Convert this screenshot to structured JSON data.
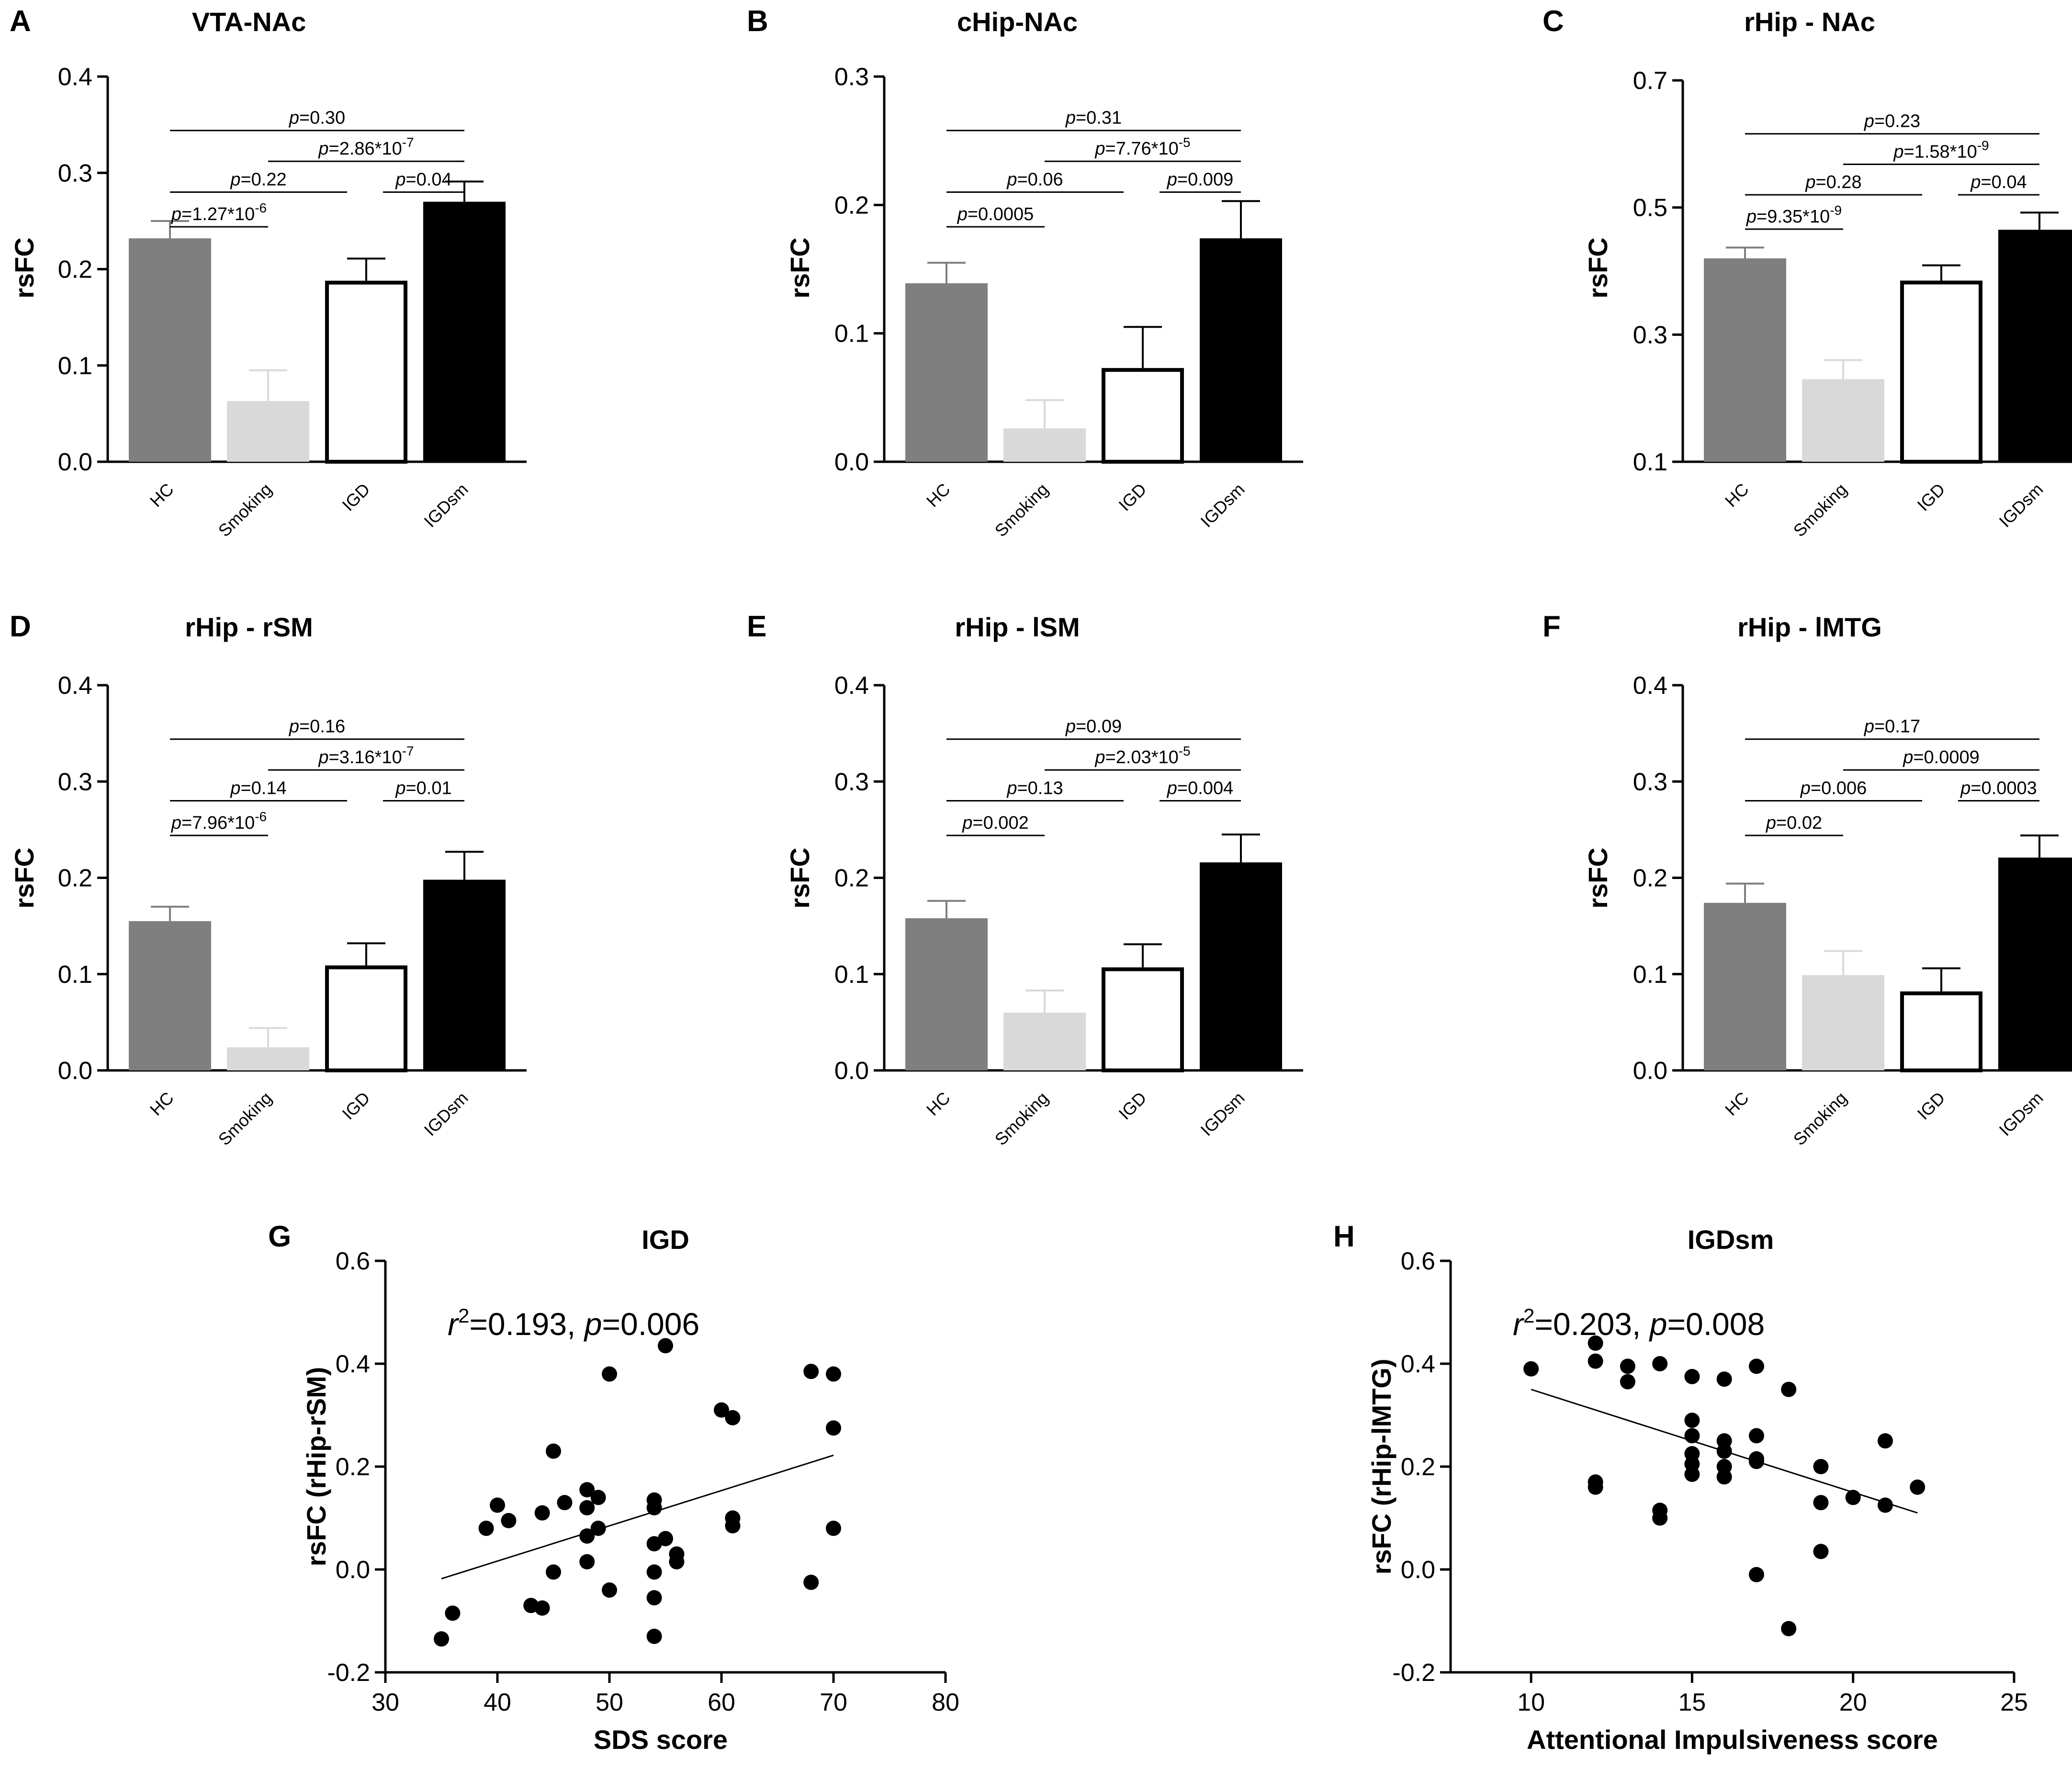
{
  "figure": {
    "bar_panels": [
      {
        "letter": "A",
        "title": "VTA-NAc",
        "ylabel": "rsFC",
        "ylim": [
          0.0,
          0.4
        ],
        "yticks": [
          "0.0",
          "0.1",
          "0.2",
          "0.3",
          "0.4"
        ],
        "categories": [
          "HC",
          "Smoking",
          "IGD",
          "IGDsm"
        ],
        "comparisons": [
          {
            "pair": [
              0,
              3
            ],
            "prefix": "p",
            "value": "=0.30"
          },
          {
            "pair": [
              1,
              3
            ],
            "prefix": "p",
            "value": "=2.86*10",
            "exp": "-7"
          },
          {
            "pair": [
              0,
              2
            ],
            "prefix": "p",
            "value": "=0.22"
          },
          {
            "pair": [
              2,
              3
            ],
            "prefix": "p",
            "value": "=0.04"
          },
          {
            "pair": [
              0,
              1
            ],
            "prefix": "p",
            "value": "=1.27*10",
            "exp": "-6"
          }
        ]
      },
      {
        "letter": "B",
        "title": "cHip-NAc",
        "ylabel": "rsFC",
        "ylim": [
          0.0,
          0.3
        ],
        "yticks": [
          "0.0",
          "0.1",
          "0.2",
          "0.3"
        ],
        "categories": [
          "HC",
          "Smoking",
          "IGD",
          "IGDsm"
        ],
        "comparisons": [
          {
            "pair": [
              0,
              3
            ],
            "prefix": "p",
            "value": "=0.31"
          },
          {
            "pair": [
              1,
              3
            ],
            "prefix": "p",
            "value": "=7.76*10",
            "exp": "-5"
          },
          {
            "pair": [
              0,
              2
            ],
            "prefix": "p",
            "value": "=0.06"
          },
          {
            "pair": [
              2,
              3
            ],
            "prefix": "p",
            "value": "=0.009"
          },
          {
            "pair": [
              0,
              1
            ],
            "prefix": "p",
            "value": "=0.0005"
          }
        ]
      },
      {
        "letter": "C",
        "title": "rHip - NAc",
        "ylabel": "rsFC",
        "ylim": [
          0.1,
          0.7
        ],
        "yticks": [
          "0.1",
          "0.3",
          "0.5",
          "0.7"
        ],
        "categories": [
          "HC",
          "Smoking",
          "IGD",
          "IGDsm"
        ],
        "comparisons": [
          {
            "pair": [
              0,
              3
            ],
            "prefix": "p",
            "value": "=0.23"
          },
          {
            "pair": [
              1,
              3
            ],
            "prefix": "p",
            "value": "=1.58*10",
            "exp": "-9"
          },
          {
            "pair": [
              0,
              2
            ],
            "prefix": "p",
            "value": "=0.28"
          },
          {
            "pair": [
              2,
              3
            ],
            "prefix": "p",
            "value": "=0.04"
          },
          {
            "pair": [
              0,
              1
            ],
            "prefix": "p",
            "value": "=9.35*10",
            "exp": "-9"
          }
        ]
      },
      {
        "letter": "D",
        "title": "rHip - rSM",
        "ylabel": "rsFC",
        "ylim": [
          0.0,
          0.4
        ],
        "yticks": [
          "0.0",
          "0.1",
          "0.2",
          "0.3",
          "0.4"
        ],
        "categories": [
          "HC",
          "Smoking",
          "IGD",
          "IGDsm"
        ],
        "comparisons": [
          {
            "pair": [
              0,
              3
            ],
            "prefix": "p",
            "value": "=0.16"
          },
          {
            "pair": [
              1,
              3
            ],
            "prefix": "p",
            "value": "=3.16*10",
            "exp": "-7"
          },
          {
            "pair": [
              0,
              2
            ],
            "prefix": "p",
            "value": "=0.14"
          },
          {
            "pair": [
              2,
              3
            ],
            "prefix": "p",
            "value": "=0.01"
          },
          {
            "pair": [
              0,
              1
            ],
            "prefix": "p",
            "value": "=7.96*10",
            "exp": "-6"
          }
        ]
      },
      {
        "letter": "E",
        "title": "rHip - lSM",
        "ylabel": "rsFC",
        "ylim": [
          0.0,
          0.4
        ],
        "yticks": [
          "0.0",
          "0.1",
          "0.2",
          "0.3",
          "0.4"
        ],
        "categories": [
          "HC",
          "Smoking",
          "IGD",
          "IGDsm"
        ],
        "comparisons": [
          {
            "pair": [
              0,
              3
            ],
            "prefix": "p",
            "value": "=0.09"
          },
          {
            "pair": [
              1,
              3
            ],
            "prefix": "p",
            "value": "=2.03*10",
            "exp": "-5"
          },
          {
            "pair": [
              0,
              2
            ],
            "prefix": "p",
            "value": "=0.13"
          },
          {
            "pair": [
              2,
              3
            ],
            "prefix": "p",
            "value": "=0.004"
          },
          {
            "pair": [
              0,
              1
            ],
            "prefix": "p",
            "value": "=0.002"
          }
        ]
      },
      {
        "letter": "F",
        "title": "rHip - lMTG",
        "ylabel": "rsFC",
        "ylim": [
          0.0,
          0.4
        ],
        "yticks": [
          "0.0",
          "0.1",
          "0.2",
          "0.3",
          "0.4"
        ],
        "categories": [
          "HC",
          "Smoking",
          "IGD",
          "IGDsm"
        ],
        "comparisons": [
          {
            "pair": [
              0,
              3
            ],
            "prefix": "p",
            "value": "=0.17"
          },
          {
            "pair": [
              1,
              3
            ],
            "prefix": "p",
            "value": "=0.0009"
          },
          {
            "pair": [
              0,
              2
            ],
            "prefix": "p",
            "value": "=0.006"
          },
          {
            "pair": [
              2,
              3
            ],
            "prefix": "p",
            "value": "=0.0003"
          },
          {
            "pair": [
              0,
              1
            ],
            "prefix": "p",
            "value": "=0.02"
          }
        ]
      }
    ],
    "scatter_panels": [
      {
        "letter": "G",
        "title": "IGD",
        "xlabel": "SDS score",
        "ylabel": "rsFC (rHip-rSM)",
        "xlim": [
          30,
          80
        ],
        "ylim": [
          -0.2,
          0.6
        ],
        "xticks": [
          "30",
          "40",
          "50",
          "60",
          "70",
          "80"
        ],
        "yticks": [
          "-0.2",
          "0.0",
          "0.2",
          "0.4",
          "0.6"
        ],
        "stat": {
          "r_sym": "r",
          "r_exp": "2",
          "r_val": "=0.193, ",
          "p_sym": "p",
          "p_val": "=0.006"
        }
      },
      {
        "letter": "H",
        "title": "IGDsm",
        "xlabel": "Attentional Impulsiveness score",
        "ylabel": "rsFC (rHip-lMTG)",
        "xlim": [
          7.5,
          25
        ],
        "ylim": [
          -0.2,
          0.6
        ],
        "xticks": [
          "10",
          "15",
          "20",
          "25"
        ],
        "yticks": [
          "-0.2",
          "0.0",
          "0.2",
          "0.4",
          "0.6"
        ],
        "stat": {
          "r_sym": "r",
          "r_exp": "2",
          "r_val": "=0.203, ",
          "p_sym": "p",
          "p_val": "=0.008"
        }
      }
    ]
  },
  "chart_data": [
    {
      "type": "bar",
      "panel": "A",
      "title": "VTA-NAc",
      "xlabel": "",
      "ylabel": "rsFC",
      "ylim": [
        0.0,
        0.4
      ],
      "categories": [
        "HC",
        "Smoking",
        "IGD",
        "IGDsm"
      ],
      "values": [
        0.232,
        0.063,
        0.188,
        0.27
      ],
      "errors": [
        0.018,
        0.032,
        0.023,
        0.021
      ],
      "colors": [
        "#7f7f7f",
        "#d9d9d9",
        "#ffffff",
        "#000000"
      ]
    },
    {
      "type": "bar",
      "panel": "B",
      "title": "cHip-NAc",
      "xlabel": "",
      "ylabel": "rsFC",
      "ylim": [
        0.0,
        0.3
      ],
      "categories": [
        "HC",
        "Smoking",
        "IGD",
        "IGDsm"
      ],
      "values": [
        0.139,
        0.026,
        0.073,
        0.174
      ],
      "errors": [
        0.016,
        0.022,
        0.032,
        0.029
      ],
      "colors": [
        "#7f7f7f",
        "#d9d9d9",
        "#ffffff",
        "#000000"
      ]
    },
    {
      "type": "bar",
      "panel": "C",
      "title": "rHip - NAc",
      "xlabel": "",
      "ylabel": "rsFC",
      "ylim": [
        0.1,
        0.7
      ],
      "categories": [
        "HC",
        "Smoking",
        "IGD",
        "IGDsm"
      ],
      "values": [
        0.42,
        0.23,
        0.385,
        0.465
      ],
      "errors": [
        0.017,
        0.03,
        0.024,
        0.027
      ],
      "colors": [
        "#7f7f7f",
        "#d9d9d9",
        "#ffffff",
        "#000000"
      ]
    },
    {
      "type": "bar",
      "panel": "D",
      "title": "rHip - rSM",
      "xlabel": "",
      "ylabel": "rsFC",
      "ylim": [
        0.0,
        0.4
      ],
      "categories": [
        "HC",
        "Smoking",
        "IGD",
        "IGDsm"
      ],
      "values": [
        0.155,
        0.024,
        0.109,
        0.198
      ],
      "errors": [
        0.015,
        0.02,
        0.023,
        0.029
      ],
      "colors": [
        "#7f7f7f",
        "#d9d9d9",
        "#ffffff",
        "#000000"
      ]
    },
    {
      "type": "bar",
      "panel": "E",
      "title": "rHip - lSM",
      "xlabel": "",
      "ylabel": "rsFC",
      "ylim": [
        0.0,
        0.4
      ],
      "categories": [
        "HC",
        "Smoking",
        "IGD",
        "IGDsm"
      ],
      "values": [
        0.158,
        0.06,
        0.107,
        0.216
      ],
      "errors": [
        0.018,
        0.023,
        0.024,
        0.029
      ],
      "colors": [
        "#7f7f7f",
        "#d9d9d9",
        "#ffffff",
        "#000000"
      ]
    },
    {
      "type": "bar",
      "panel": "F",
      "title": "rHip - lMTG",
      "xlabel": "",
      "ylabel": "rsFC",
      "ylim": [
        0.0,
        0.4
      ],
      "categories": [
        "HC",
        "Smoking",
        "IGD",
        "IGDsm"
      ],
      "values": [
        0.174,
        0.099,
        0.082,
        0.221
      ],
      "errors": [
        0.02,
        0.025,
        0.024,
        0.023
      ],
      "colors": [
        "#7f7f7f",
        "#d9d9d9",
        "#ffffff",
        "#000000"
      ]
    },
    {
      "type": "scatter",
      "panel": "G",
      "title": "IGD",
      "xlabel": "SDS score",
      "ylabel": "rsFC (rHip-rSM)",
      "xlim": [
        30,
        80
      ],
      "ylim": [
        -0.2,
        0.6
      ],
      "x": [
        35,
        36,
        39,
        40,
        41,
        43,
        44,
        44,
        45,
        45,
        46,
        48,
        48,
        48,
        48,
        49,
        49,
        50,
        50,
        54,
        54,
        54,
        54,
        54,
        54,
        55,
        55,
        56,
        56,
        60,
        61,
        61,
        61,
        68,
        68,
        70,
        70,
        70
      ],
      "y": [
        -0.135,
        -0.085,
        0.08,
        0.125,
        0.095,
        -0.07,
        -0.075,
        0.11,
        -0.005,
        0.23,
        0.13,
        0.155,
        0.12,
        0.065,
        0.015,
        0.14,
        0.08,
        0.38,
        -0.04,
        0.135,
        0.12,
        -0.005,
        -0.055,
        -0.13,
        0.05,
        0.435,
        0.06,
        0.03,
        0.015,
        0.31,
        0.295,
        0.1,
        0.085,
        0.385,
        -0.025,
        0.38,
        0.275,
        0.08
      ],
      "fit": {
        "x": [
          35,
          70
        ],
        "y": [
          -0.018,
          0.222
        ]
      },
      "annotation": "r2=0.193, p=0.006"
    },
    {
      "type": "scatter",
      "panel": "H",
      "title": "IGDsm",
      "xlabel": "Attentional Impulsiveness score",
      "ylabel": "rsFC (rHip-lMTG)",
      "xlim": [
        7.5,
        25
      ],
      "ylim": [
        -0.2,
        0.6
      ],
      "x": [
        10,
        12,
        12,
        12,
        12,
        13,
        13,
        14,
        14,
        14,
        15,
        15,
        15,
        15,
        15,
        15,
        16,
        16,
        16,
        16,
        16,
        17,
        17,
        17,
        17,
        17,
        18,
        18,
        19,
        19,
        19,
        20,
        21,
        21,
        22
      ],
      "y": [
        0.39,
        0.44,
        0.405,
        0.17,
        0.16,
        0.395,
        0.365,
        0.4,
        0.115,
        0.1,
        0.375,
        0.29,
        0.26,
        0.225,
        0.205,
        0.185,
        0.37,
        0.25,
        0.23,
        0.2,
        0.18,
        0.395,
        0.26,
        0.215,
        0.21,
        -0.01,
        0.35,
        -0.115,
        0.2,
        0.13,
        0.035,
        0.14,
        0.25,
        0.125,
        0.16
      ],
      "fit": {
        "x": [
          10,
          22
        ],
        "y": [
          0.35,
          0.11
        ]
      },
      "annotation": "r2=0.203, p=0.008"
    }
  ]
}
